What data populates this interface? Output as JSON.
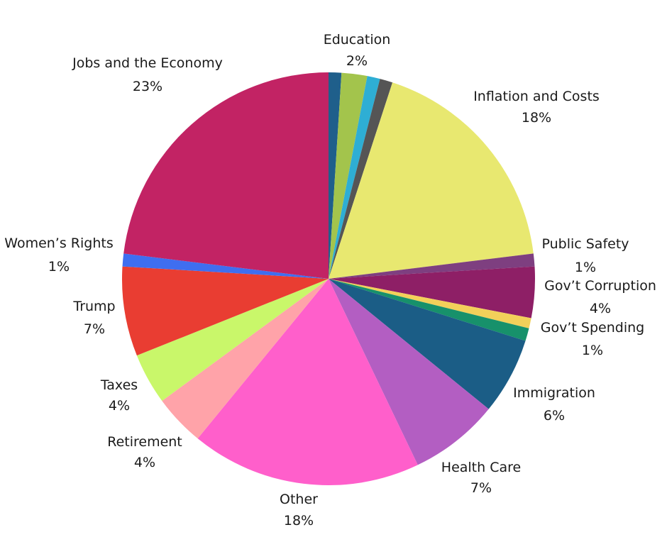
{
  "chart_data": {
    "type": "pie",
    "title": "",
    "start_angle_deg": 0,
    "direction": "clockwise",
    "slices": [
      {
        "label": "",
        "value": 1.0,
        "color": "#1f5f8b"
      },
      {
        "label": "Education",
        "value": 2,
        "color": "#a3c44c",
        "percent_text": "2%"
      },
      {
        "label": "",
        "value": 1.0,
        "color": "#2eaed4"
      },
      {
        "label": "",
        "value": 1.0,
        "color": "#555555"
      },
      {
        "label": "Inflation and Costs",
        "value": 18,
        "color": "#e8e870",
        "percent_text": "18%"
      },
      {
        "label": "Public Safety",
        "value": 1,
        "color": "#7e3f80",
        "percent_text": "1%"
      },
      {
        "label": "Gov’t Corruption",
        "value": 4,
        "color": "#8e1f66",
        "percent_text": "4%"
      },
      {
        "label": "",
        "value": 0.8,
        "color": "#f2d05a"
      },
      {
        "label": "Gov’t Spending",
        "value": 1,
        "color": "#17916b",
        "percent_text": "1%"
      },
      {
        "label": "Immigration",
        "value": 6,
        "color": "#1b5d86",
        "percent_text": "6%"
      },
      {
        "label": "Health Care",
        "value": 7,
        "color": "#b35ec2",
        "percent_text": "7%"
      },
      {
        "label": "Other",
        "value": 18,
        "color": "#ff5fcb",
        "percent_text": "18%"
      },
      {
        "label": "Retirement",
        "value": 4,
        "color": "#ffa3a9",
        "percent_text": "4%"
      },
      {
        "label": "Taxes",
        "value": 4,
        "color": "#c9f76a",
        "percent_text": "4%"
      },
      {
        "label": "Trump",
        "value": 7,
        "color": "#e93d32",
        "percent_text": "7%"
      },
      {
        "label": "Women’s Rights",
        "value": 1,
        "color": "#3f6ef0",
        "percent_text": "1%"
      },
      {
        "label": "Jobs and the Economy",
        "value": 23,
        "color": "#c22364",
        "percent_text": "23%"
      }
    ]
  }
}
